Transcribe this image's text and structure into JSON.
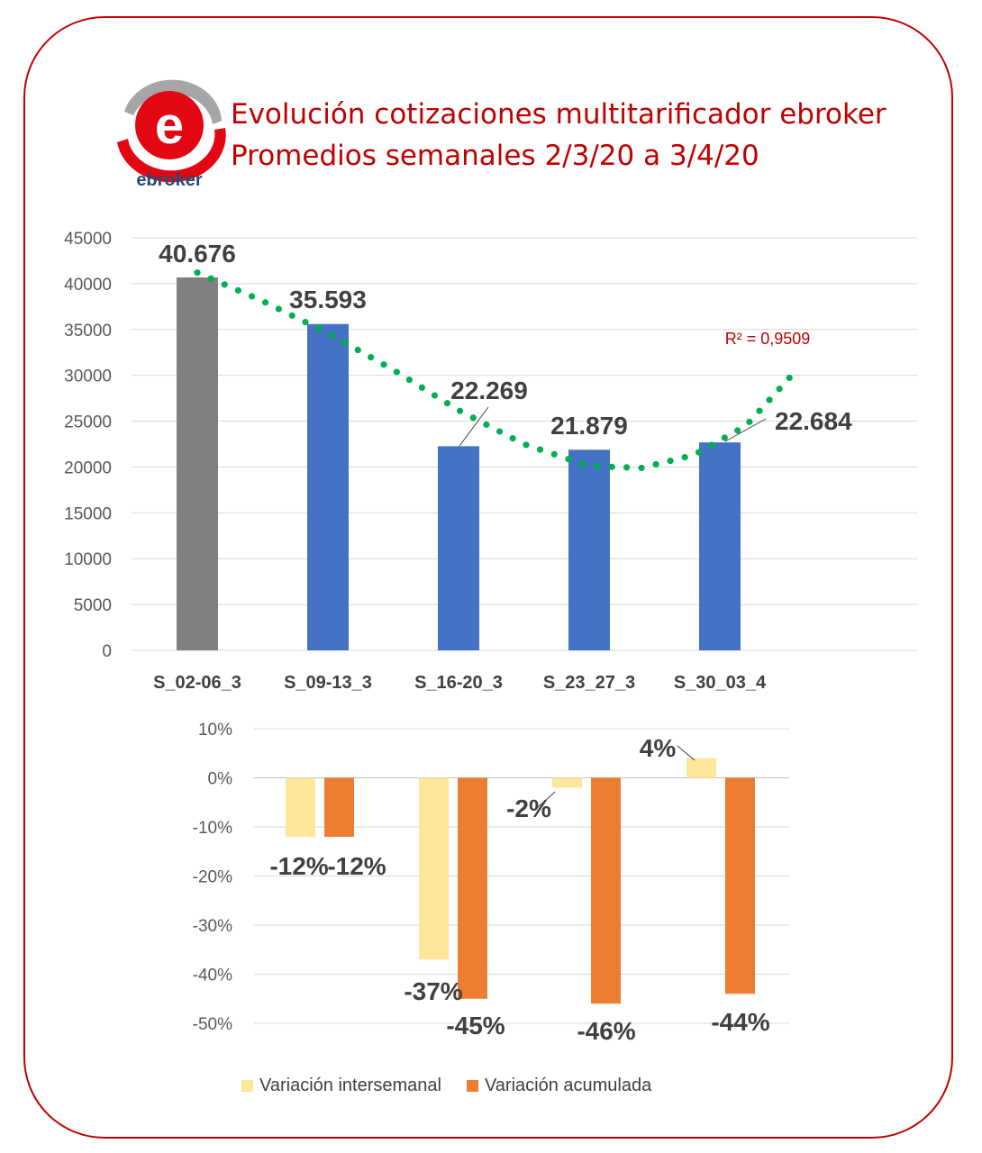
{
  "header": {
    "title_line1": "Evolución cotizaciones multitarificador ebroker",
    "title_line2": "Promedios semanales 2/3/20  a 3/4/20",
    "logo_text": "ebroker"
  },
  "colors": {
    "frame": "#c00000",
    "title": "#c00000",
    "bar_first": "#808080",
    "bar_main": "#4472c4",
    "trendline": "#00b050",
    "var_intersemanal": "#ffe699",
    "var_acumulada": "#ed7d31"
  },
  "chart_data": [
    {
      "type": "bar",
      "title": "",
      "categories": [
        "S_02-06_3",
        "S_09-13_3",
        "S_16-20_3",
        "S_23_27_3",
        "S_30_03_4"
      ],
      "values": [
        40676,
        35593,
        22269,
        21879,
        22684
      ],
      "data_labels": [
        "40.676",
        "35.593",
        "22.269",
        "21.879",
        "22.684"
      ],
      "ylim": [
        0,
        45000
      ],
      "yticks": [
        "0",
        "5000",
        "10000",
        "15000",
        "20000",
        "25000",
        "30000",
        "35000",
        "40000",
        "45000"
      ],
      "grid": true,
      "trendline": {
        "type": "polynomial",
        "r2_label": "R² = 0,9509",
        "points": [
          {
            "x": 0.0,
            "y": 41200
          },
          {
            "x": 0.5,
            "y": 38100
          },
          {
            "x": 1.0,
            "y": 34600
          },
          {
            "x": 1.5,
            "y": 30600
          },
          {
            "x": 2.0,
            "y": 26200
          },
          {
            "x": 2.5,
            "y": 22500
          },
          {
            "x": 3.0,
            "y": 20100
          },
          {
            "x": 3.4,
            "y": 19900
          },
          {
            "x": 3.8,
            "y": 21300
          },
          {
            "x": 4.2,
            "y": 24500
          },
          {
            "x": 4.55,
            "y": 30000
          }
        ]
      }
    },
    {
      "type": "bar",
      "title": "",
      "groups": 4,
      "series": [
        {
          "name": "Variación intersemanal",
          "values": [
            -0.12,
            -0.37,
            -0.02,
            0.04
          ],
          "labels": [
            "-12%",
            "-37%",
            "-2%",
            "4%"
          ]
        },
        {
          "name": "Variación acumulada",
          "values": [
            -0.12,
            -0.45,
            -0.46,
            -0.44
          ],
          "labels": [
            "-12%",
            "-45%",
            "-46%",
            "-44%"
          ]
        }
      ],
      "ylim": [
        -0.5,
        0.1
      ],
      "yticks": [
        "-50%",
        "-40%",
        "-30%",
        "-20%",
        "-10%",
        "0%",
        "10%"
      ],
      "grid": true,
      "legend": "bottom"
    }
  ]
}
